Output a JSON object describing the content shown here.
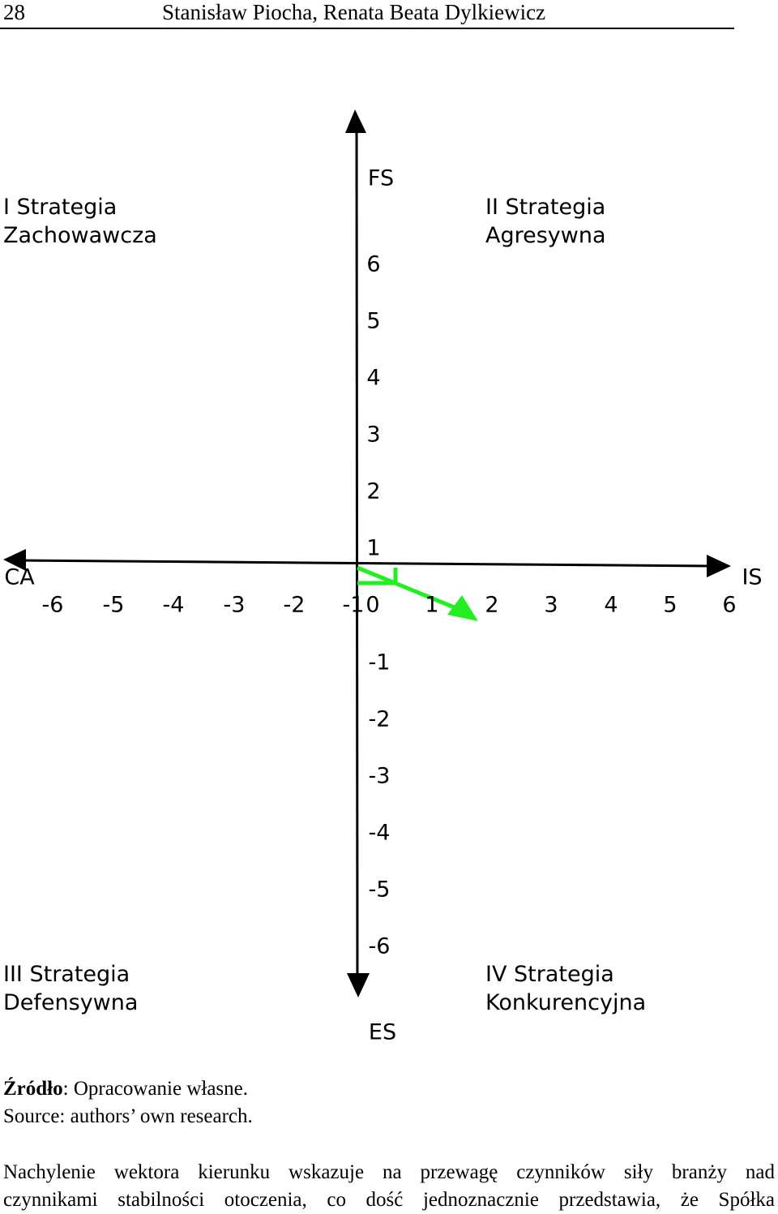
{
  "header": {
    "page": "28",
    "authors": "Stanisław Piocha, Renata Beata Dylkiewicz"
  },
  "diagram": {
    "y_axis_top": "FS",
    "y_axis_bottom": "ES",
    "x_axis_left": "CA",
    "x_axis_right": "IS",
    "x_ticks": [
      "-6",
      "-5",
      "-4",
      "-3",
      "-2",
      "-1",
      "0",
      "1",
      "2",
      "3",
      "4",
      "5",
      "6"
    ],
    "y_ticks_positive": [
      "6",
      "5",
      "4",
      "3",
      "2",
      "1"
    ],
    "y_ticks_negative": [
      "-1",
      "-2",
      "-3",
      "-4",
      "-5",
      "-6"
    ],
    "quadrants": [
      {
        "line1": "I Strategia",
        "line2": "Zachowawcza"
      },
      {
        "line1": "II Strategia",
        "line2": "Agresywna"
      },
      {
        "line1": "III Strategia",
        "line2": "Defensywna"
      },
      {
        "line1": "IV Strategia",
        "line2": "Konkurencyjna"
      }
    ]
  },
  "source": {
    "label": "Źródło",
    "text": ": Opracowanie własne.",
    "english": "Source: authors’ own research."
  },
  "body": {
    "lines": [
      "Nachylenie wektora kierunku wskazuje na przewagę czynników siły branży nad",
      "czynnikami stabilności otoczenia, co dość jednoznacznie przedstawia, że Spółka"
    ]
  }
}
